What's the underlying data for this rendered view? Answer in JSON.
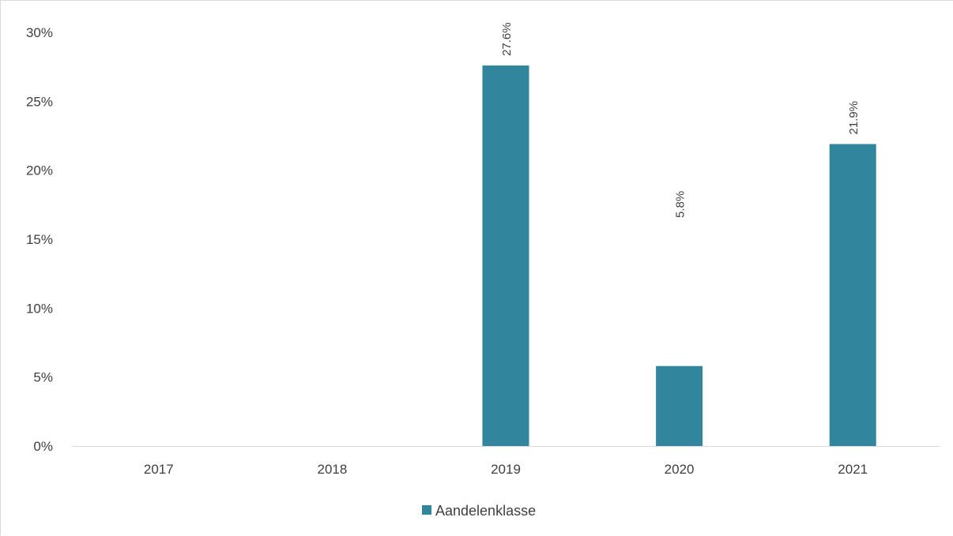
{
  "chart_data": {
    "type": "bar",
    "categories": [
      "2017",
      "2018",
      "2019",
      "2020",
      "2021"
    ],
    "series": [
      {
        "name": "Aandelenklasse",
        "values": [
          null,
          null,
          27.6,
          5.8,
          21.9
        ],
        "data_labels": [
          "",
          "",
          "27.6%",
          "5.8%",
          "21.9%"
        ],
        "color": "#31859c"
      }
    ],
    "yticks": [
      "0%",
      "5%",
      "10%",
      "15%",
      "20%",
      "25%",
      "30%"
    ],
    "ytick_values": [
      0,
      5,
      10,
      15,
      20,
      25,
      30
    ],
    "ylim": [
      0,
      30
    ],
    "grid": false,
    "legend": "bottom",
    "axis_color": "#d9d9d9"
  }
}
